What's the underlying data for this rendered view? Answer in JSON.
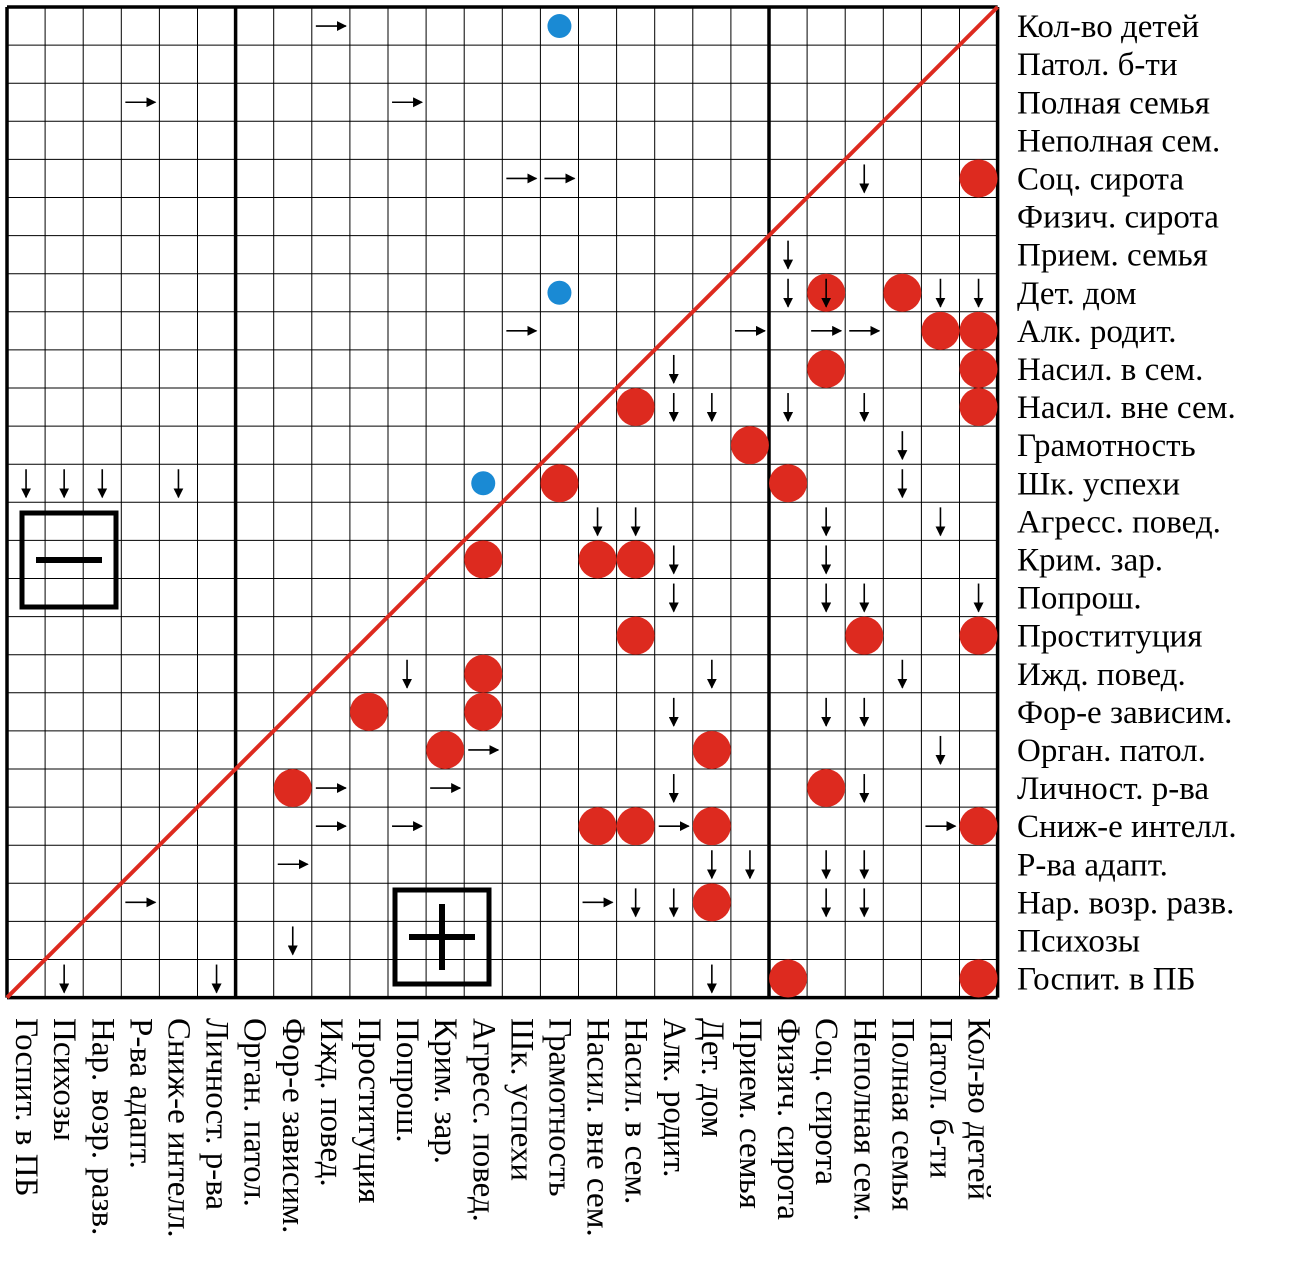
{
  "labels": [
    "Кол-во детей",
    "Патол. б-ти",
    "Полная семья",
    "Неполная сем.",
    "Соц. сирота",
    "Физич. сирота",
    "Прием. семья",
    "Дет. дом",
    "Алк. родит.",
    "Насил. в сем.",
    "Насил. вне сем.",
    "Грамотность",
    "Шк. успехи",
    "Агресс. повед.",
    "Крим. зар.",
    "Попрош.",
    "Проституция",
    "Ижд. повед.",
    "Фор-е зависим.",
    "Орган. патол.",
    "Личност. р-ва",
    "Сниж-е интелл.",
    "Р-ва адапт.",
    "Нар. возр. разв.",
    "Психозы",
    "Госпит. в ПБ"
  ],
  "column_labels": [
    "Госпит. в ПБ",
    "Психозы",
    "Нар. возр. разв.",
    "Р-ва адапт.",
    "Сниж-е интелл.",
    "Личност. р-ва",
    "Орган. патол.",
    "Фор-е зависим.",
    "Ижд. повед.",
    "Проституция",
    "Попрош.",
    "Крим. зар.",
    "Агресс. повед.",
    "Шк. успехи",
    "Грамотность",
    "Насил. вне сем.",
    "Насил. в сем.",
    "Алк. родит.",
    "Дет. дом",
    "Прием. семья",
    "Физич. сирота",
    "Соц. сирота",
    "Неполная сем.",
    "Полная семья",
    "Патол. б-ти",
    "Кол-во детей"
  ],
  "colors": {
    "red": "#dd2a1f",
    "blue": "#1a8ad4",
    "grid": "#000000",
    "diagonal": "#dd2a1f"
  },
  "minus_label": "−",
  "plus_label": "+",
  "red_dots": [
    [
      4,
      25
    ],
    [
      7,
      21
    ],
    [
      7,
      23
    ],
    [
      8,
      24
    ],
    [
      8,
      25
    ],
    [
      9,
      21
    ],
    [
      9,
      25
    ],
    [
      10,
      16
    ],
    [
      10,
      25
    ],
    [
      11,
      19
    ],
    [
      12,
      14
    ],
    [
      12,
      20
    ],
    [
      14,
      12
    ],
    [
      14,
      15
    ],
    [
      14,
      16
    ],
    [
      16,
      16
    ],
    [
      16,
      22
    ],
    [
      16,
      25
    ],
    [
      17,
      12
    ],
    [
      18,
      9
    ],
    [
      18,
      12
    ],
    [
      19,
      11
    ],
    [
      19,
      18
    ],
    [
      20,
      7
    ],
    [
      20,
      21
    ],
    [
      21,
      15
    ],
    [
      21,
      16
    ],
    [
      21,
      18
    ],
    [
      21,
      25
    ],
    [
      23,
      18
    ],
    [
      25,
      20
    ],
    [
      25,
      25
    ]
  ],
  "blue_dots": [
    [
      0,
      14
    ],
    [
      7,
      14
    ],
    [
      12,
      12
    ]
  ],
  "down_arrows": [
    [
      4,
      22
    ],
    [
      6,
      20
    ],
    [
      7,
      20
    ],
    [
      7,
      21
    ],
    [
      7,
      24
    ],
    [
      7,
      25
    ],
    [
      9,
      17
    ],
    [
      10,
      17
    ],
    [
      10,
      18
    ],
    [
      10,
      20
    ],
    [
      10,
      22
    ],
    [
      11,
      23
    ],
    [
      12,
      0
    ],
    [
      12,
      1
    ],
    [
      12,
      2
    ],
    [
      12,
      4
    ],
    [
      12,
      23
    ],
    [
      13,
      15
    ],
    [
      13,
      16
    ],
    [
      13,
      21
    ],
    [
      13,
      24
    ],
    [
      14,
      17
    ],
    [
      14,
      21
    ],
    [
      15,
      17
    ],
    [
      15,
      21
    ],
    [
      15,
      22
    ],
    [
      15,
      25
    ],
    [
      17,
      10
    ],
    [
      17,
      18
    ],
    [
      17,
      23
    ],
    [
      18,
      17
    ],
    [
      18,
      21
    ],
    [
      18,
      22
    ],
    [
      19,
      24
    ],
    [
      20,
      17
    ],
    [
      20,
      22
    ],
    [
      22,
      18
    ],
    [
      22,
      19
    ],
    [
      22,
      21
    ],
    [
      22,
      22
    ],
    [
      23,
      16
    ],
    [
      23,
      17
    ],
    [
      23,
      21
    ],
    [
      23,
      22
    ],
    [
      24,
      7
    ],
    [
      25,
      1
    ],
    [
      25,
      5
    ],
    [
      25,
      18
    ]
  ],
  "right_arrows": [
    [
      0,
      8
    ],
    [
      2,
      3
    ],
    [
      2,
      10
    ],
    [
      4,
      13
    ],
    [
      4,
      14
    ],
    [
      8,
      13
    ],
    [
      8,
      19
    ],
    [
      8,
      21
    ],
    [
      8,
      22
    ],
    [
      19,
      12
    ],
    [
      20,
      8
    ],
    [
      20,
      11
    ],
    [
      21,
      8
    ],
    [
      21,
      10
    ],
    [
      21,
      17
    ],
    [
      21,
      24
    ],
    [
      22,
      7
    ],
    [
      23,
      3
    ],
    [
      23,
      15
    ]
  ]
}
